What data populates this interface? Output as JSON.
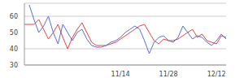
{
  "chart_data": {
    "type": "line",
    "categories": [
      null,
      null,
      null,
      null,
      null,
      null,
      null,
      null,
      null,
      null,
      null,
      null,
      null,
      null,
      null,
      null,
      null,
      null,
      null,
      null,
      "11/14",
      null,
      null,
      null,
      null,
      null,
      null,
      null,
      null,
      null,
      "11/28",
      null,
      null,
      null,
      null,
      null,
      null,
      null,
      null,
      null,
      "12/12",
      null,
      null
    ],
    "series": [
      {
        "color": "#e8413c",
        "values": [
          55,
          55,
          55,
          58,
          52,
          46,
          50,
          55,
          47,
          40,
          47,
          52,
          56,
          50,
          44,
          42,
          42,
          42,
          43,
          44,
          46,
          48,
          50,
          52,
          54,
          55,
          50,
          45,
          43,
          46,
          45,
          45,
          46,
          48,
          50,
          52,
          47,
          49,
          45,
          44,
          43,
          48,
          47
        ]
      },
      {
        "color": "#5a6fd6",
        "values": [
          null,
          67,
          58,
          50,
          54,
          60,
          50,
          43,
          55,
          50,
          45,
          50,
          52,
          46,
          42,
          41,
          41,
          42,
          44,
          45,
          47,
          50,
          52,
          54,
          52,
          45,
          37,
          44,
          47,
          48,
          45,
          44,
          47,
          54,
          50,
          46,
          48,
          47,
          44,
          42,
          45,
          49,
          46
        ]
      }
    ],
    "ylim": [
      30,
      68
    ],
    "yticks": [
      30,
      40,
      50,
      60
    ],
    "grid": true
  }
}
